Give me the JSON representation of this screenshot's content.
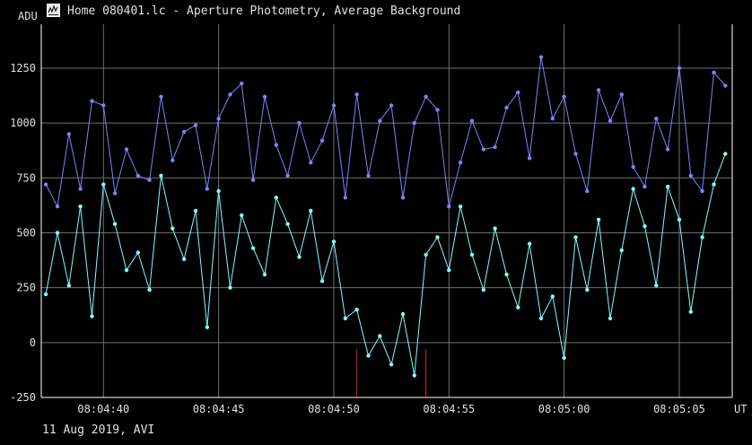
{
  "window": {
    "title": "Home 080401.lc - Aperture Photometry, Average Background",
    "icon": "light-curve-app-icon"
  },
  "footer": {
    "date_text": "11 Aug 2019, AVI"
  },
  "chart_data": {
    "type": "line",
    "ylabel": "ADU",
    "xunit": "UT",
    "ylim": [
      -250,
      1450
    ],
    "xlim": [
      "08:04:37.3",
      "08:05:07.3"
    ],
    "yticks": [
      -250,
      0,
      250,
      500,
      750,
      1000,
      1250
    ],
    "xticks": [
      "08:04:40",
      "08:04:45",
      "08:04:50",
      "08:04:55",
      "08:05:00",
      "08:05:05"
    ],
    "grid": true,
    "markers": [
      "08:04:51.0",
      "08:04:54.0"
    ],
    "colors": {
      "series1": "#8080ff",
      "series2": "#80ffff",
      "grid": "#707070",
      "marker": "#d02020",
      "axis": "#ffffff"
    },
    "series": [
      {
        "key": "series1",
        "x": [
          37.5,
          38.0,
          38.5,
          39.0,
          39.5,
          40.0,
          40.5,
          41.0,
          41.5,
          42.0,
          42.5,
          43.0,
          43.5,
          44.0,
          44.5,
          45.0,
          45.5,
          46.0,
          46.5,
          47.0,
          47.5,
          48.0,
          48.5,
          49.0,
          49.5,
          50.0,
          50.5,
          51.0,
          51.5,
          52.0,
          52.5,
          53.0,
          53.5,
          54.0,
          54.5,
          55.0,
          55.5,
          56.0,
          56.5,
          57.0,
          57.5,
          58.0,
          58.5,
          59.0,
          59.5,
          60.0,
          60.5,
          61.0,
          61.5,
          62.0,
          62.5,
          63.0,
          63.5,
          64.0,
          64.5,
          65.0,
          65.5,
          66.0,
          66.5,
          67.0
        ],
        "y": [
          720,
          620,
          950,
          700,
          1100,
          1080,
          680,
          880,
          760,
          740,
          1120,
          830,
          960,
          990,
          700,
          1020,
          1130,
          1180,
          740,
          1120,
          900,
          760,
          1000,
          820,
          920,
          1080,
          660,
          1130,
          760,
          1010,
          1080,
          660,
          1000,
          1120,
          1060,
          620,
          820,
          1010,
          880,
          890,
          1070,
          1140,
          840,
          1300,
          1020,
          1120,
          860,
          690,
          1150,
          1010,
          1130,
          800,
          710,
          1020,
          880,
          1250,
          760,
          690,
          1230,
          1170
        ]
      },
      {
        "key": "series2",
        "x": [
          37.5,
          38.0,
          38.5,
          39.0,
          39.5,
          40.0,
          40.5,
          41.0,
          41.5,
          42.0,
          42.5,
          43.0,
          43.5,
          44.0,
          44.5,
          45.0,
          45.5,
          46.0,
          46.5,
          47.0,
          47.5,
          48.0,
          48.5,
          49.0,
          49.5,
          50.0,
          50.5,
          51.0,
          51.5,
          52.0,
          52.5,
          53.0,
          53.5,
          54.0,
          54.5,
          55.0,
          55.5,
          56.0,
          56.5,
          57.0,
          57.5,
          58.0,
          58.5,
          59.0,
          59.5,
          60.0,
          60.5,
          61.0,
          61.5,
          62.0,
          62.5,
          63.0,
          63.5,
          64.0,
          64.5,
          65.0,
          65.5,
          66.0,
          66.5,
          67.0
        ],
        "y": [
          220,
          500,
          260,
          620,
          120,
          720,
          540,
          330,
          410,
          240,
          760,
          520,
          380,
          600,
          70,
          690,
          250,
          580,
          430,
          310,
          660,
          540,
          390,
          600,
          280,
          460,
          110,
          150,
          -60,
          30,
          -100,
          130,
          -150,
          400,
          480,
          330,
          620,
          400,
          240,
          520,
          310,
          160,
          450,
          110,
          210,
          -70,
          480,
          240,
          560,
          110,
          420,
          700,
          530,
          260,
          710,
          560,
          140,
          480,
          720,
          860
        ]
      }
    ]
  }
}
